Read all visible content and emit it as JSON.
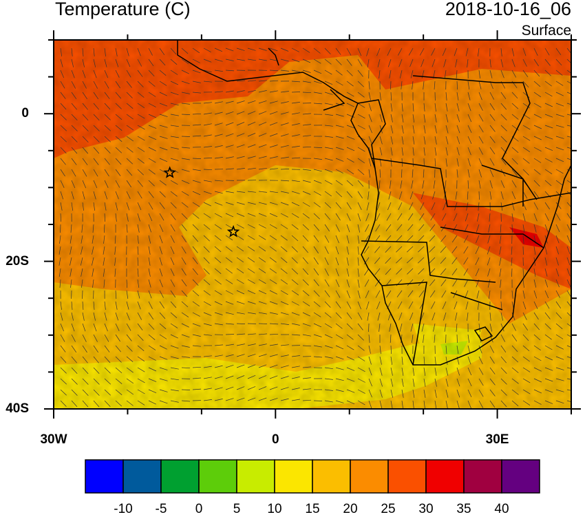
{
  "title": "Temperature (C)",
  "datetime": "2018-10-16_06",
  "level": "Surface",
  "axes": {
    "y_ticks": [
      {
        "label": "0",
        "lat": 0
      },
      {
        "label": "20S",
        "lat": -20
      },
      {
        "label": "40S",
        "lat": -40
      }
    ],
    "x_ticks": [
      {
        "label": "30W",
        "lon": -30
      },
      {
        "label": "0",
        "lon": 0
      },
      {
        "label": "30E",
        "lon": 30
      }
    ],
    "lon_range": [
      -30,
      40
    ],
    "lat_range": [
      -40,
      10
    ]
  },
  "colorbar": {
    "colors": [
      "#0000ff",
      "#005a9c",
      "#00a030",
      "#5dcd0a",
      "#c8ec00",
      "#fbe600",
      "#fbbe00",
      "#fb8c00",
      "#fa5000",
      "#f00000",
      "#a00040",
      "#640080"
    ],
    "labels": [
      "-10",
      "-5",
      "0",
      "5",
      "10",
      "15",
      "20",
      "25",
      "30",
      "35",
      "40"
    ]
  },
  "markers": [
    {
      "name": "star",
      "lon": -14.3,
      "lat": -8
    },
    {
      "name": "star",
      "lon": -5.7,
      "lat": -16
    }
  ]
}
